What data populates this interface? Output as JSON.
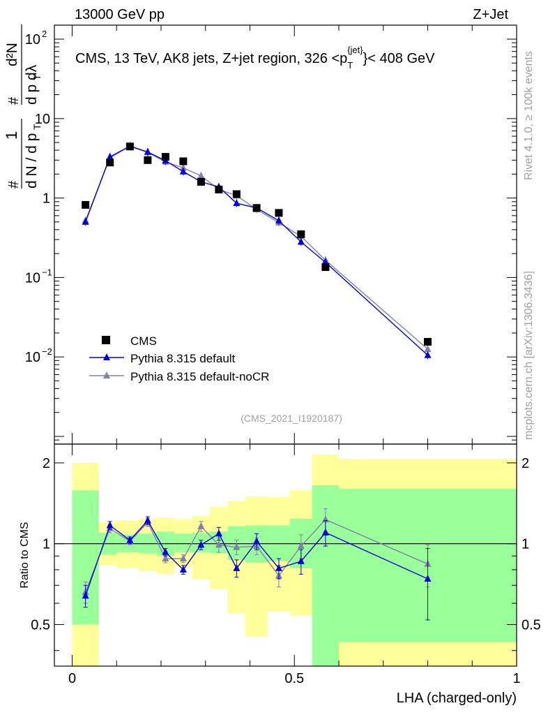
{
  "header": {
    "left": "13000 GeV pp",
    "right": "Z+Jet"
  },
  "side_labels": {
    "rivet": "Rivet 4.1.0, ≥ 100k events",
    "mcplots": "mcplots.cern.ch [arXiv:1306.3436]"
  },
  "colors": {
    "cms": "#000000",
    "pythia_default": "#0000dd",
    "pythia_nocr": "#8080b0",
    "band_inner": "#99ff99",
    "band_outer": "#ffff99",
    "analysis_id": "#a0a0a0"
  },
  "chart_data": [
    {
      "type": "scatter",
      "panel": "main",
      "title": "CMS, 13 TeV, AK8 jets, Z+jet region, 326 <p_T^{jet}< 408 GeV",
      "title_parts": {
        "prefix": "CMS, 13 TeV, AK8 jets, Z+jet region, 326 <p",
        "sub": "T",
        "sup": "{jet}",
        "suffix": "}< 408 GeV"
      },
      "ylabel": "1/(dN/dp_T) d²N/(dp_T dλ)",
      "ylabel_parts": {
        "one": "1",
        "dn": "d N / d p",
        "t": "T",
        "hash": "#",
        "d2n": "d²N",
        "dpdl": "d p  dλ"
      },
      "yscale": "log",
      "ylim": [
        0.0008,
        150
      ],
      "xlim": [
        -0.04,
        1.0
      ],
      "ytick_labels": [
        {
          "value": 0.01,
          "base": "10",
          "exp": "−2"
        },
        {
          "value": 0.1,
          "base": "10",
          "exp": "−1"
        },
        {
          "value": 1,
          "base": "1",
          "exp": ""
        },
        {
          "value": 10,
          "base": "10",
          "exp": ""
        },
        {
          "value": 100,
          "base": "10",
          "exp": "2"
        }
      ],
      "analysis_id": "(CMS_2021_I1920187)",
      "legend": {
        "position": "bottom-left",
        "entries": [
          "CMS",
          "Pythia 8.315 default",
          "Pythia 8.315 default-noCR"
        ]
      },
      "series": [
        {
          "name": "CMS",
          "marker": "square",
          "x": [
            0.03,
            0.085,
            0.13,
            0.17,
            0.21,
            0.25,
            0.29,
            0.33,
            0.37,
            0.415,
            0.465,
            0.515,
            0.57,
            0.8
          ],
          "y": [
            0.82,
            2.8,
            4.45,
            3.0,
            3.3,
            2.9,
            1.6,
            1.28,
            1.12,
            0.75,
            0.65,
            0.35,
            0.135,
            0.0155
          ]
        },
        {
          "name": "Pythia 8.315 default",
          "marker": "triangle",
          "x": [
            0.03,
            0.085,
            0.13,
            0.17,
            0.21,
            0.25,
            0.29,
            0.33,
            0.37,
            0.415,
            0.465,
            0.515,
            0.57,
            0.8
          ],
          "y": [
            0.5,
            3.3,
            4.5,
            3.8,
            2.95,
            2.15,
            1.6,
            1.38,
            0.86,
            0.75,
            0.52,
            0.28,
            0.155,
            0.0105
          ]
        },
        {
          "name": "Pythia 8.315 default-noCR",
          "marker": "triangle",
          "x": [
            0.03,
            0.085,
            0.13,
            0.17,
            0.21,
            0.25,
            0.29,
            0.33,
            0.37,
            0.415,
            0.465,
            0.515,
            0.57,
            0.8
          ],
          "y": [
            0.52,
            3.2,
            4.5,
            3.75,
            2.85,
            2.4,
            1.9,
            1.28,
            1.07,
            0.72,
            0.49,
            0.33,
            0.165,
            0.0125
          ]
        }
      ]
    },
    {
      "type": "line",
      "panel": "ratio",
      "ylabel": "Ratio to CMS",
      "xlabel": "LHA (charged-only)",
      "yscale": "log",
      "ylim": [
        0.35,
        2.35
      ],
      "xlim": [
        -0.04,
        1.0
      ],
      "x_ticks": [
        0,
        0.5,
        1
      ],
      "x_tick_labels": [
        "0",
        "0.5",
        "1"
      ],
      "y_ticks": [
        0.5,
        1,
        2
      ],
      "y_tick_labels": [
        "0.5",
        "1",
        "2"
      ],
      "uncertainty_bands": {
        "edges": [
          0.0,
          0.06,
          0.1,
          0.15,
          0.19,
          0.23,
          0.27,
          0.31,
          0.35,
          0.39,
          0.44,
          0.49,
          0.54,
          0.6,
          1.0
        ],
        "inner_low": [
          0.5,
          0.91,
          0.93,
          0.92,
          0.9,
          0.93,
          0.93,
          0.92,
          0.87,
          0.85,
          0.86,
          0.81,
          0.35,
          0.43
        ],
        "inner_high": [
          1.58,
          1.1,
          1.08,
          1.09,
          1.11,
          1.09,
          1.1,
          1.11,
          1.16,
          1.17,
          1.17,
          1.24,
          1.65,
          1.6
        ],
        "outer_low": [
          0.35,
          0.83,
          0.81,
          0.79,
          0.77,
          0.82,
          0.74,
          0.68,
          0.55,
          0.45,
          0.56,
          0.54,
          0.35,
          0.35
        ],
        "outer_high": [
          2.0,
          1.2,
          1.22,
          1.24,
          1.25,
          1.23,
          1.27,
          1.37,
          1.44,
          1.5,
          1.49,
          1.58,
          2.15,
          2.07
        ]
      },
      "series": [
        {
          "name": "Pythia 8.315 default",
          "x": [
            0.03,
            0.085,
            0.13,
            0.17,
            0.21,
            0.25,
            0.29,
            0.33,
            0.37,
            0.415,
            0.465,
            0.515,
            0.57,
            0.8
          ],
          "y": [
            0.64,
            1.17,
            1.03,
            1.22,
            0.93,
            0.8,
            0.99,
            1.09,
            0.81,
            1.02,
            0.81,
            0.86,
            1.1,
            0.74
          ],
          "err": [
            0.06,
            0.04,
            0.03,
            0.04,
            0.03,
            0.03,
            0.04,
            0.06,
            0.06,
            0.07,
            0.07,
            0.09,
            0.12,
            0.22
          ]
        },
        {
          "name": "Pythia 8.315 default-noCR",
          "x": [
            0.03,
            0.085,
            0.13,
            0.17,
            0.21,
            0.25,
            0.29,
            0.33,
            0.37,
            0.415,
            0.465,
            0.515,
            0.57,
            0.8
          ],
          "y": [
            0.66,
            1.14,
            1.02,
            1.2,
            0.88,
            0.88,
            1.16,
            0.99,
            0.97,
            0.98,
            0.76,
            0.98,
            1.23,
            0.84
          ],
          "err": [
            0.06,
            0.04,
            0.03,
            0.04,
            0.03,
            0.03,
            0.05,
            0.06,
            0.06,
            0.07,
            0.07,
            0.1,
            0.12,
            0.15
          ]
        }
      ]
    }
  ]
}
